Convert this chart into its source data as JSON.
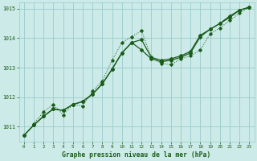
{
  "xlabel": "Graphe pression niveau de la mer (hPa)",
  "xlim": [
    -0.5,
    23.5
  ],
  "ylim": [
    1010.5,
    1015.2
  ],
  "yticks": [
    1011,
    1012,
    1013,
    1014,
    1015
  ],
  "xticks": [
    0,
    1,
    2,
    3,
    4,
    5,
    6,
    7,
    8,
    9,
    10,
    11,
    12,
    13,
    14,
    15,
    16,
    17,
    18,
    19,
    20,
    21,
    22,
    23
  ],
  "bg_color": "#cceae7",
  "grid_color": "#99cccc",
  "line_color": "#1a5c1a",
  "series1": {
    "x": [
      0,
      1,
      2,
      3,
      4,
      5,
      6,
      7,
      8,
      9,
      10,
      11,
      12,
      13,
      14,
      15,
      16,
      17,
      18,
      19,
      20,
      21,
      22,
      23
    ],
    "y": [
      1010.7,
      1011.05,
      1011.35,
      1011.6,
      1011.55,
      1011.75,
      1011.85,
      1012.1,
      1012.45,
      1012.95,
      1013.5,
      1013.85,
      1013.95,
      1013.35,
      1013.25,
      1013.3,
      1013.4,
      1013.55,
      1014.1,
      1014.3,
      1014.5,
      1014.75,
      1014.95,
      1015.05
    ]
  },
  "series2": {
    "x": [
      1,
      2,
      3,
      4,
      5,
      6,
      7,
      8,
      9,
      10,
      11,
      12,
      13,
      14,
      15,
      16,
      17,
      18,
      19,
      20,
      21,
      22,
      23
    ],
    "y": [
      1011.1,
      1011.5,
      1011.75,
      1011.4,
      1011.75,
      1011.7,
      1012.2,
      1012.55,
      1013.25,
      1013.85,
      1014.05,
      1014.25,
      1013.35,
      1013.15,
      1013.1,
      1013.3,
      1013.4,
      1013.6,
      1014.15,
      1014.35,
      1014.6,
      1014.85,
      1015.05
    ]
  },
  "series3": {
    "x": [
      0,
      1,
      2,
      3,
      4,
      5,
      6,
      7,
      8,
      9,
      10,
      11,
      12,
      13,
      14,
      15,
      16,
      17,
      18,
      19,
      20,
      21,
      22,
      23
    ],
    "y": [
      1010.7,
      1011.05,
      1011.35,
      1011.6,
      1011.55,
      1011.75,
      1011.85,
      1012.1,
      1012.45,
      1012.95,
      1013.5,
      1013.85,
      1013.6,
      1013.3,
      1013.2,
      1013.25,
      1013.35,
      1013.5,
      1014.05,
      1014.3,
      1014.5,
      1014.7,
      1014.95,
      1015.05
    ]
  }
}
